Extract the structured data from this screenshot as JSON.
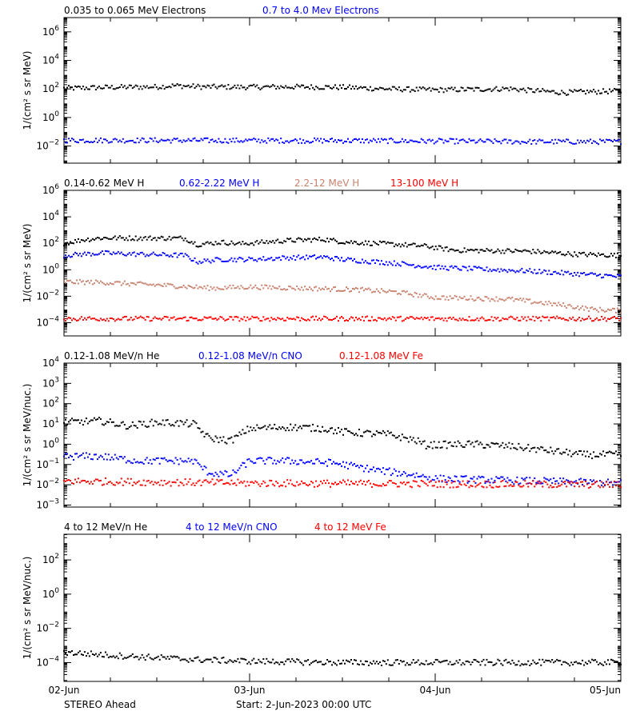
{
  "colors": {
    "black": "#000000",
    "blue": "#0000ff",
    "tan": "#c8826e",
    "red": "#ff0000",
    "background": "#ffffff"
  },
  "footer": {
    "mission": "STEREO Ahead",
    "start_label": "Start:  2-Jun-2023 00:00 UTC"
  },
  "x_axis": {
    "range_days": [
      0,
      3
    ],
    "ticks": [
      {
        "value": 0,
        "label": "02-Jun"
      },
      {
        "value": 1,
        "label": "03-Jun"
      },
      {
        "value": 2,
        "label": "04-Jun"
      },
      {
        "value": 3,
        "label": "05-Jun"
      }
    ]
  },
  "chart_data": [
    {
      "type": "scatter",
      "ylabel": "1/(cm² s sr MeV)",
      "ylog": true,
      "ylim_exp": [
        -3.2,
        7
      ],
      "yticks": [
        -2,
        0,
        2,
        4,
        6
      ],
      "series": [
        {
          "name": "0.035 to 0.065 MeV Electrons",
          "color": "#000000",
          "points": [
            [
              0,
              110
            ],
            [
              0.25,
              130
            ],
            [
              0.5,
              140
            ],
            [
              0.6,
              170
            ],
            [
              0.75,
              140
            ],
            [
              1,
              135
            ],
            [
              1.25,
              140
            ],
            [
              1.5,
              130
            ],
            [
              1.75,
              100
            ],
            [
              2,
              85
            ],
            [
              2.25,
              95
            ],
            [
              2.4,
              105
            ],
            [
              2.5,
              80
            ],
            [
              2.7,
              55
            ],
            [
              2.85,
              65
            ],
            [
              3,
              70
            ]
          ]
        },
        {
          "name": "0.7 to 4.0 Mev Electrons",
          "color": "#0000ff",
          "points": [
            [
              0,
              0.025
            ],
            [
              0.5,
              0.025
            ],
            [
              1,
              0.024
            ],
            [
              1.5,
              0.024
            ],
            [
              2,
              0.022
            ],
            [
              2.5,
              0.02
            ],
            [
              3,
              0.02
            ]
          ]
        }
      ]
    },
    {
      "type": "scatter",
      "ylabel": "1/(cm² s sr MeV)",
      "ylog": true,
      "ylim_exp": [
        -5,
        6
      ],
      "yticks": [
        -4,
        -2,
        0,
        2,
        4,
        6
      ],
      "series": [
        {
          "name": "0.14-0.62 MeV H",
          "color": "#000000",
          "points": [
            [
              0,
              100
            ],
            [
              0.1,
              180
            ],
            [
              0.2,
              250
            ],
            [
              0.65,
              240
            ],
            [
              0.72,
              80
            ],
            [
              0.85,
              120
            ],
            [
              0.95,
              90
            ],
            [
              1.2,
              160
            ],
            [
              1.4,
              200
            ],
            [
              1.5,
              130
            ],
            [
              1.8,
              80
            ],
            [
              1.95,
              60
            ],
            [
              2.1,
              30
            ],
            [
              2.5,
              25
            ],
            [
              2.75,
              15
            ],
            [
              3,
              12
            ]
          ]
        },
        {
          "name": "0.62-2.22 MeV H",
          "color": "#0000ff",
          "points": [
            [
              0,
              12
            ],
            [
              0.1,
              15
            ],
            [
              0.2,
              18
            ],
            [
              0.65,
              12
            ],
            [
              0.72,
              4
            ],
            [
              0.85,
              6
            ],
            [
              1,
              6
            ],
            [
              1.2,
              8
            ],
            [
              1.4,
              9
            ],
            [
              1.5,
              6
            ],
            [
              1.8,
              3
            ],
            [
              2,
              1.5
            ],
            [
              2.5,
              0.8
            ],
            [
              2.75,
              0.5
            ],
            [
              3,
              0.3
            ]
          ]
        },
        {
          "name": "2.2-12 MeV H",
          "color": "#c8826e",
          "points": [
            [
              0,
              0.12
            ],
            [
              0.2,
              0.11
            ],
            [
              0.6,
              0.06
            ],
            [
              0.8,
              0.04
            ],
            [
              1,
              0.05
            ],
            [
              1.3,
              0.04
            ],
            [
              1.6,
              0.03
            ],
            [
              1.8,
              0.02
            ],
            [
              2,
              0.008
            ],
            [
              2.4,
              0.006
            ],
            [
              2.7,
              0.002
            ],
            [
              2.85,
              0.001
            ],
            [
              3,
              0.0008
            ]
          ]
        },
        {
          "name": "13-100 MeV H",
          "color": "#ff0000",
          "points": [
            [
              0,
              0.0002
            ],
            [
              1,
              0.0002
            ],
            [
              2,
              0.0002
            ],
            [
              3,
              0.0002
            ]
          ]
        }
      ]
    },
    {
      "type": "scatter",
      "ylabel": "1/(cm² s sr MeV/nuc.)",
      "ylog": true,
      "ylim_exp": [
        -3.1,
        4
      ],
      "yticks": [
        -3,
        -2,
        -1,
        0,
        1,
        2,
        3,
        4
      ],
      "series": [
        {
          "name": "0.12-1.08 MeV/n He",
          "color": "#000000",
          "points": [
            [
              0,
              12
            ],
            [
              0.2,
              14
            ],
            [
              0.35,
              8
            ],
            [
              0.5,
              12
            ],
            [
              0.7,
              10
            ],
            [
              0.78,
              2
            ],
            [
              0.9,
              1.5
            ],
            [
              1,
              6
            ],
            [
              1.2,
              7
            ],
            [
              1.4,
              6
            ],
            [
              1.5,
              4
            ],
            [
              1.75,
              3
            ],
            [
              1.9,
              1.5
            ],
            [
              1.95,
              0.9
            ],
            [
              2.2,
              1
            ],
            [
              2.4,
              0.8
            ],
            [
              2.6,
              0.5
            ],
            [
              2.8,
              0.3
            ],
            [
              3,
              0.3
            ]
          ]
        },
        {
          "name": "0.12-1.08 MeV/n CNO",
          "color": "#0000ff",
          "points": [
            [
              0,
              0.25
            ],
            [
              0.2,
              0.25
            ],
            [
              0.4,
              0.15
            ],
            [
              0.7,
              0.15
            ],
            [
              0.78,
              0.04
            ],
            [
              0.9,
              0.03
            ],
            [
              1,
              0.15
            ],
            [
              1.2,
              0.15
            ],
            [
              1.45,
              0.12
            ],
            [
              1.7,
              0.05
            ],
            [
              1.9,
              0.03
            ],
            [
              2,
              0.02
            ],
            [
              3,
              0.012
            ]
          ]
        },
        {
          "name": "0.12-1.08 MeV Fe",
          "color": "#ff0000",
          "points": [
            [
              0,
              0.015
            ],
            [
              1,
              0.012
            ],
            [
              2,
              0.011
            ],
            [
              3,
              0.01
            ]
          ]
        }
      ]
    },
    {
      "type": "scatter",
      "ylabel": "1/(cm² s sr MeV/nuc.)",
      "ylog": true,
      "ylim_exp": [
        -5.1,
        3.5
      ],
      "yticks": [
        -4,
        -2,
        0,
        2
      ],
      "series": [
        {
          "name": "4 to 12 MeV/n He",
          "color": "#000000",
          "points": [
            [
              0,
              0.0004
            ],
            [
              0.3,
              0.00025
            ],
            [
              0.7,
              0.00015
            ],
            [
              1,
              0.00012
            ],
            [
              1.5,
              0.0001
            ],
            [
              2,
              0.0001
            ],
            [
              3,
              0.0001
            ]
          ]
        },
        {
          "name": "4 to 12 MeV/n CNO",
          "color": "#0000ff",
          "points": []
        },
        {
          "name": "4 to 12 MeV Fe",
          "color": "#ff0000",
          "points": []
        }
      ]
    }
  ]
}
